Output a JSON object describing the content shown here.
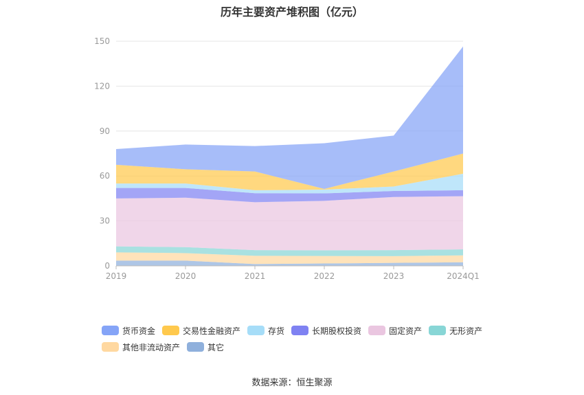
{
  "title": "历年主要资产堆积图（亿元）",
  "source": "数据来源：恒生聚源",
  "chart_data": {
    "type": "area",
    "stacked": true,
    "categories": [
      "2019",
      "2020",
      "2021",
      "2022",
      "2023",
      "2024Q1"
    ],
    "ylim": [
      0,
      150
    ],
    "yticks": [
      0,
      30,
      60,
      90,
      120,
      150
    ],
    "grid": true,
    "legend_position": "bottom",
    "series": [
      {
        "name": "其它",
        "color": "#8fb0dc",
        "values": [
          3.5,
          3.5,
          1.2,
          1.6,
          2.0,
          2.4
        ]
      },
      {
        "name": "其他非流动资产",
        "color": "#ffd8a0",
        "values": [
          5.5,
          5.0,
          5.5,
          5.0,
          4.5,
          4.6
        ]
      },
      {
        "name": "无形资产",
        "color": "#88d6d6",
        "values": [
          4.0,
          4.0,
          3.8,
          3.8,
          4.0,
          4.0
        ]
      },
      {
        "name": "固定资产",
        "color": "#eac6e0",
        "values": [
          32.0,
          33.0,
          32.0,
          33.0,
          35.5,
          35.5
        ]
      },
      {
        "name": "长期股权投资",
        "color": "#7f82f2",
        "values": [
          7.0,
          6.5,
          6.0,
          5.0,
          4.0,
          4.0
        ]
      },
      {
        "name": "存货",
        "color": "#a6ddf8",
        "values": [
          3.0,
          3.0,
          2.0,
          2.5,
          3.0,
          11.0
        ]
      },
      {
        "name": "交易性金融资产",
        "color": "#ffc94d",
        "values": [
          12.5,
          9.5,
          12.5,
          0.5,
          10.0,
          13.5
        ]
      },
      {
        "name": "货币资金",
        "color": "#85a4f7",
        "values": [
          10.5,
          16.5,
          17.0,
          30.5,
          24.0,
          71.5
        ]
      }
    ],
    "legend_order": [
      "货币资金",
      "交易性金融资产",
      "存货",
      "长期股权投资",
      "固定资产",
      "无形资产",
      "其他非流动资产",
      "其它"
    ]
  }
}
